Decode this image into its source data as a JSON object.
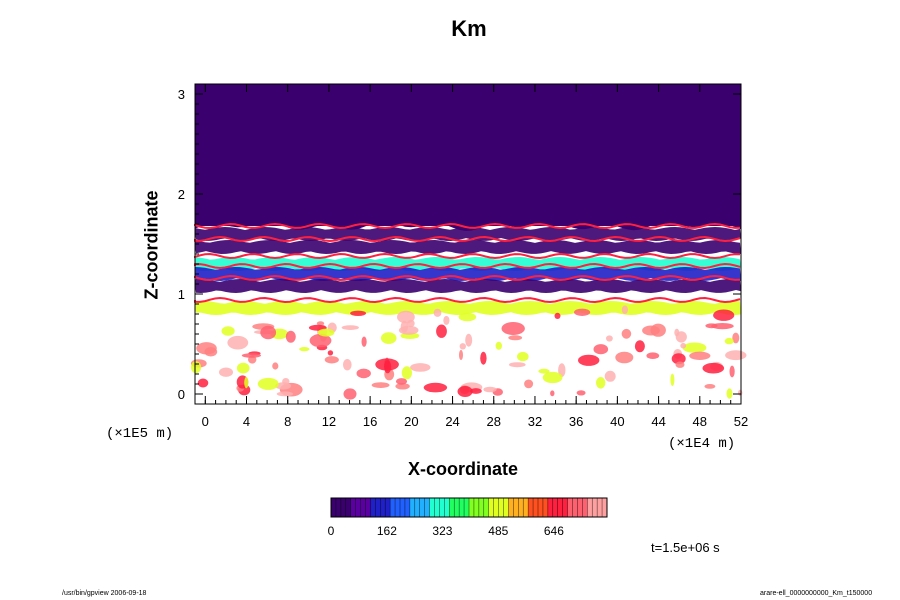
{
  "chart_data": {
    "type": "heatmap",
    "title": "Km",
    "xlabel": "X-coordinate",
    "ylabel": "Z-coordinate",
    "x_unit": "(×1E4 m)",
    "y_unit": "(×1E5 m)",
    "xlim": [
      -1,
      52
    ],
    "ylim": [
      -0.1,
      3.1
    ],
    "x_ticks": [
      0,
      4,
      8,
      12,
      16,
      20,
      24,
      28,
      32,
      36,
      40,
      44,
      48,
      52
    ],
    "y_ticks": [
      0,
      1,
      2,
      3
    ],
    "field": {
      "upper_uniform_value": 0,
      "upper_region_zmin": 1.68,
      "layers": [
        {
          "z": 1.6,
          "value": 0
        },
        {
          "z": 1.47,
          "value": 0
        },
        {
          "z": 1.3,
          "value": 323
        },
        {
          "z": 1.2,
          "value": 162
        },
        {
          "z": 1.08,
          "value": 0
        },
        {
          "z": 0.86,
          "value": 485
        }
      ]
    },
    "colorbar": {
      "ticks": [
        0,
        162,
        323,
        485,
        646
      ],
      "range": [
        0,
        800
      ],
      "colors": [
        "#3a006e",
        "#5a00a0",
        "#2020c8",
        "#2060ff",
        "#20b0ff",
        "#20ffd0",
        "#20ff60",
        "#80ff20",
        "#e0ff20",
        "#ffb020",
        "#ff5020",
        "#ff2040",
        "#ff6070",
        "#ffa0a0"
      ]
    },
    "annotation": "t=1.5e+06 s"
  },
  "footer_left": "/usr/bin/gpview 2006-09-18",
  "footer_right": "arare-ell_0000000000_Km_t150000"
}
